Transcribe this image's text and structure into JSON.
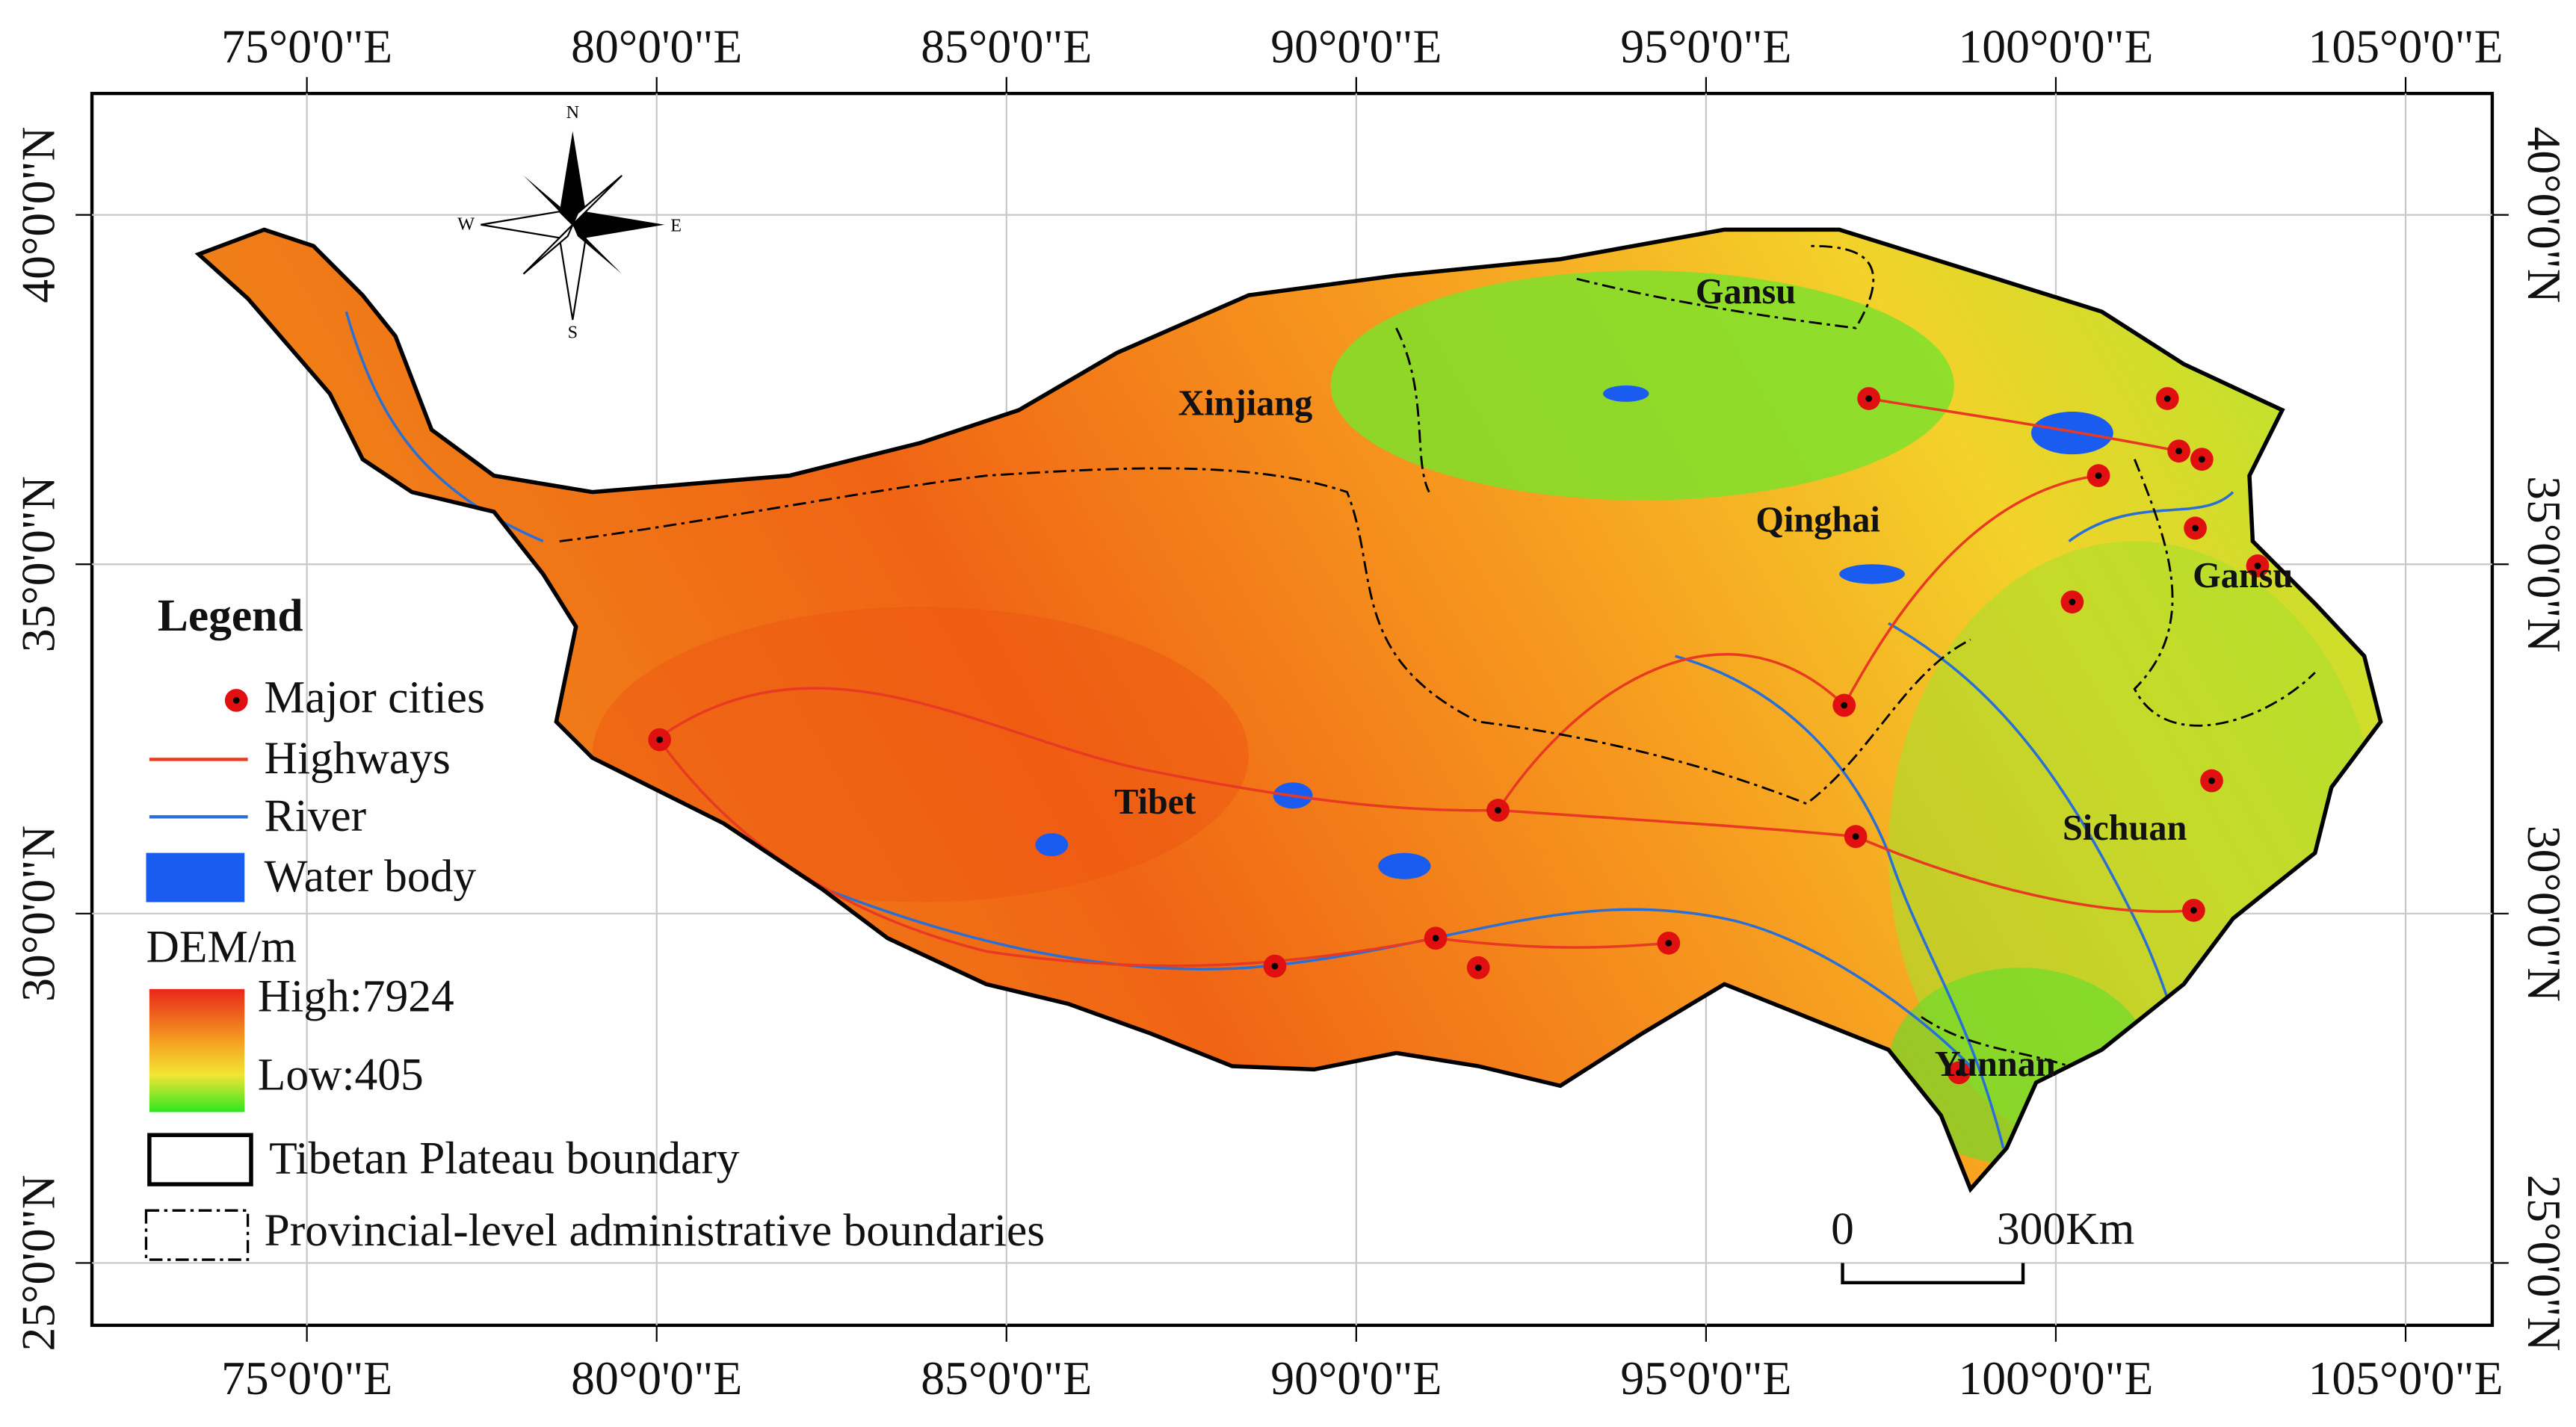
{
  "map": {
    "lon_labels": [
      "75°0'0\"E",
      "80°0'0\"E",
      "85°0'0\"E",
      "90°0'0\"E",
      "95°0'0\"E",
      "100°0'0\"E",
      "105°0'0\"E"
    ],
    "lat_labels": [
      "25°0'0\"N",
      "30°0'0\"N",
      "35°0'0\"N",
      "40°0'0\"N"
    ],
    "compass": {
      "north": "N",
      "south": "S",
      "east": "E",
      "west": "W"
    },
    "regions": [
      "Gansu",
      "Xinjiang",
      "Qinghai",
      "Gansu",
      "Tibet",
      "Sichuan",
      "Yunnan"
    ],
    "legend": {
      "title": "Legend",
      "items": [
        "Major cities",
        "Highways",
        "River",
        "Water body"
      ],
      "dem_title": "DEM/m",
      "high": "High:7924",
      "low": "Low:405",
      "boundaries": [
        "Tibetan Plateau boundary",
        "Provincial-level administrative boundaries"
      ]
    },
    "scale_bar": {
      "start": "0",
      "end": "300Km"
    }
  }
}
